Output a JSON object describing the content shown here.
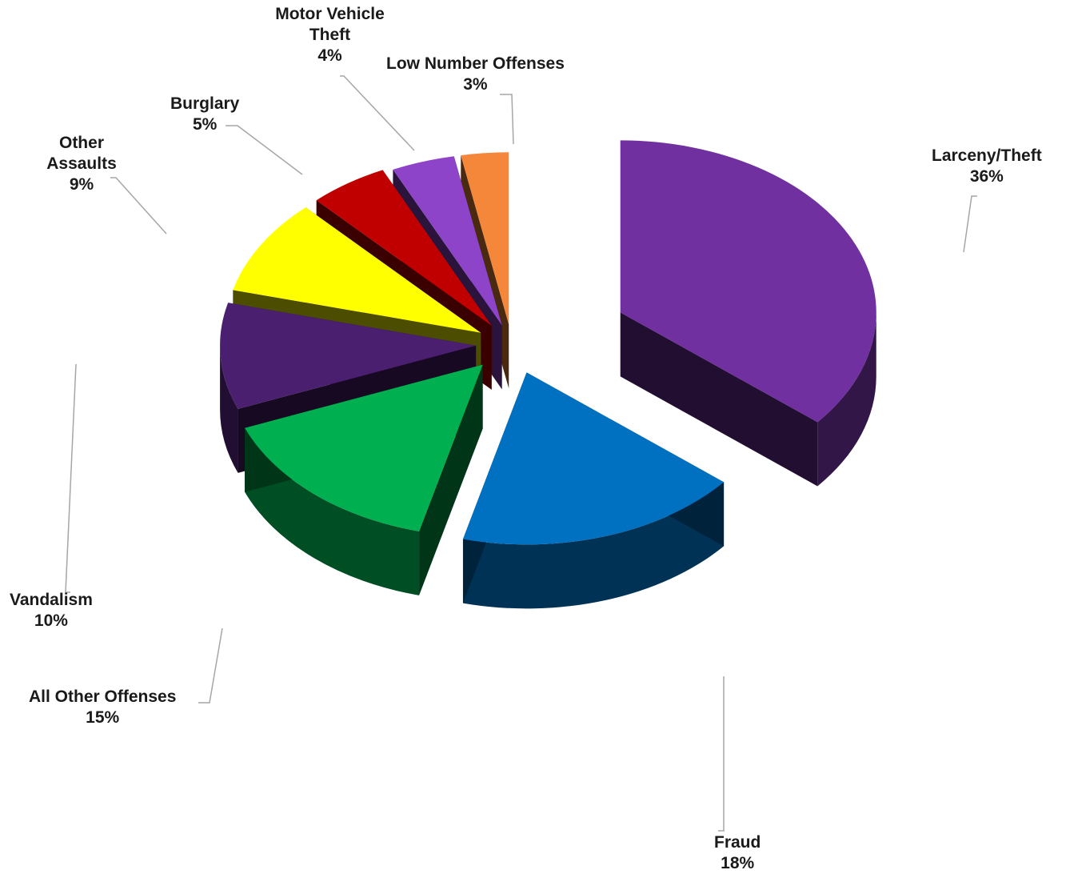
{
  "chart_data": {
    "type": "pie",
    "style": "3d-exploded",
    "title": "",
    "slices": [
      {
        "label": "Larceny/Theft",
        "value": 36,
        "percent_label": "36%",
        "color": "#7030a0"
      },
      {
        "label": "Fraud",
        "value": 18,
        "percent_label": "18%",
        "color": "#0070c0"
      },
      {
        "label": "All Other Offenses",
        "value": 15,
        "percent_label": "15%",
        "color": "#00b050"
      },
      {
        "label": "Vandalism",
        "value": 10,
        "percent_label": "10%",
        "color": "#4b1f6f"
      },
      {
        "label": "Other Assaults",
        "value": 9,
        "percent_label": "9%",
        "color": "#ffff00"
      },
      {
        "label": "Burglary",
        "value": 5,
        "percent_label": "5%",
        "color": "#c00000"
      },
      {
        "label": "Motor Vehicle Theft",
        "value": 4,
        "percent_label": "4%",
        "color": "#8e44c8"
      },
      {
        "label": "Low Number Offenses",
        "value": 3,
        "percent_label": "3%",
        "color": "#f5873a"
      }
    ]
  }
}
